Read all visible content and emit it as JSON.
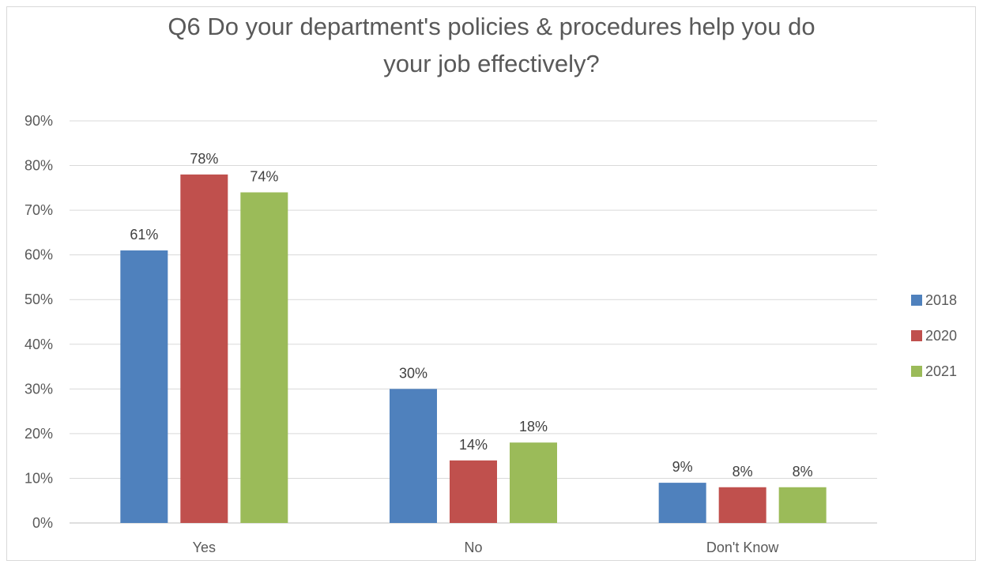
{
  "chart_data": {
    "type": "bar",
    "title_lines": [
      "Q6 Do your department's policies & procedures help you do",
      "your job effectively?"
    ],
    "categories": [
      "Yes",
      "No",
      "Don't Know"
    ],
    "series": [
      {
        "name": "2018",
        "color": "#4f81bd",
        "values": [
          61,
          30,
          9
        ],
        "labels": [
          "61%",
          "30%",
          "9%"
        ]
      },
      {
        "name": "2020",
        "color": "#c0504d",
        "values": [
          78,
          14,
          8
        ],
        "labels": [
          "78%",
          "14%",
          "8%"
        ]
      },
      {
        "name": "2021",
        "color": "#9bbb59",
        "values": [
          74,
          18,
          8
        ],
        "labels": [
          "74%",
          "18%",
          "8%"
        ]
      }
    ],
    "yticks": [
      "0%",
      "10%",
      "20%",
      "30%",
      "40%",
      "50%",
      "60%",
      "70%",
      "80%",
      "90%"
    ],
    "ylim": [
      0,
      90
    ],
    "grid": true,
    "legend_position": "right"
  }
}
